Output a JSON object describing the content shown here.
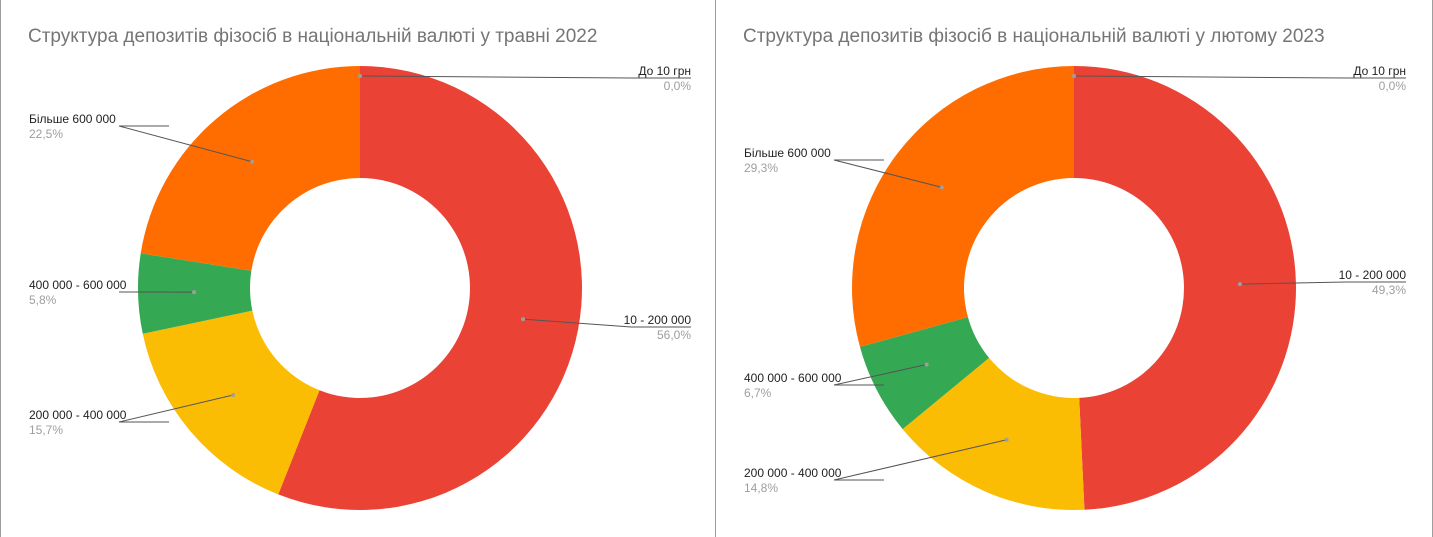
{
  "chart_data": [
    {
      "type": "pie",
      "title": "Структура депозитів фізосіб в національній валюті у травні 2022",
      "categories": [
        "До 10 грн",
        "10 - 200 000",
        "200 000 - 400 000",
        "400 000 - 600 000",
        "Більше 600 000"
      ],
      "values": [
        0.0,
        56.0,
        15.7,
        5.8,
        22.5
      ],
      "value_labels": [
        "0,0%",
        "56,0%",
        "15,7%",
        "5,8%",
        "22,5%"
      ],
      "colors": [
        "#4285f4",
        "#ea4335",
        "#fbbc04",
        "#34a853",
        "#ff6d01"
      ],
      "donut": true,
      "legend": "none"
    },
    {
      "type": "pie",
      "title": "Структура депозитів фізосіб в національній валюті у лютому 2023",
      "categories": [
        "До 10 грн",
        "10 - 200 000",
        "200 000 - 400 000",
        "400 000 - 600 000",
        "Більше 600 000"
      ],
      "values": [
        0.0,
        49.3,
        14.8,
        6.7,
        29.3
      ],
      "value_labels": [
        "0,0%",
        "49,3%",
        "14,8%",
        "6,7%",
        "29,3%"
      ],
      "colors": [
        "#4285f4",
        "#ea4335",
        "#fbbc04",
        "#34a853",
        "#ff6d01"
      ],
      "donut": true,
      "legend": "none"
    }
  ]
}
